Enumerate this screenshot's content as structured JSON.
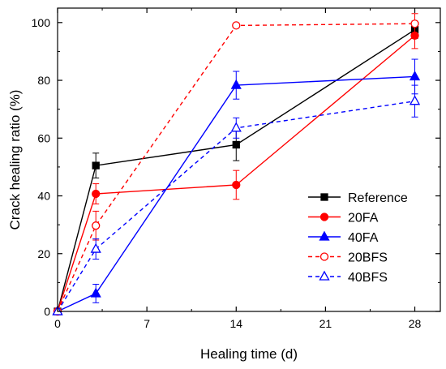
{
  "chart_data": {
    "type": "line",
    "xlabel": "Healing time (d)",
    "ylabel": "Crack healing ratio (%)",
    "xlim": [
      0,
      30
    ],
    "ylim": [
      0,
      105
    ],
    "xticks": [
      0,
      7,
      14,
      21,
      28
    ],
    "yticks": [
      0,
      20,
      40,
      60,
      80,
      100
    ],
    "grid": false,
    "legend_position": "bottom-right",
    "series": [
      {
        "name": "Reference",
        "color": "#000000",
        "marker": "filled-square",
        "line_style": "solid",
        "x": [
          0,
          3,
          14,
          28
        ],
        "y": [
          0,
          50.5,
          57.7,
          97.5
        ],
        "error": [
          0,
          4.3,
          5.5,
          3.0
        ]
      },
      {
        "name": "20FA",
        "color": "#ff0000",
        "marker": "filled-circle",
        "line_style": "solid",
        "x": [
          0,
          3,
          14,
          28
        ],
        "y": [
          0,
          40.7,
          43.8,
          95.5
        ],
        "error": [
          0,
          3.5,
          5.0,
          4.5
        ]
      },
      {
        "name": "40FA",
        "color": "#0000ff",
        "marker": "filled-triangle",
        "line_style": "solid",
        "x": [
          0,
          3,
          14,
          28
        ],
        "y": [
          0,
          6.2,
          78.3,
          81.3
        ],
        "error": [
          0,
          3.2,
          4.8,
          6.0
        ]
      },
      {
        "name": "20BFS",
        "color": "#ff0000",
        "marker": "open-circle",
        "line_style": "dashed",
        "x": [
          0,
          3,
          14,
          28
        ],
        "y": [
          0,
          29.7,
          99.0,
          99.6
        ],
        "error": [
          0,
          5.0,
          0,
          3.5
        ]
      },
      {
        "name": "40BFS",
        "color": "#0000ff",
        "marker": "open-triangle",
        "line_style": "dashed",
        "x": [
          0,
          3,
          14,
          28
        ],
        "y": [
          0,
          21.6,
          63.5,
          72.8
        ],
        "error": [
          0,
          3.5,
          3.5,
          5.5
        ]
      }
    ]
  }
}
